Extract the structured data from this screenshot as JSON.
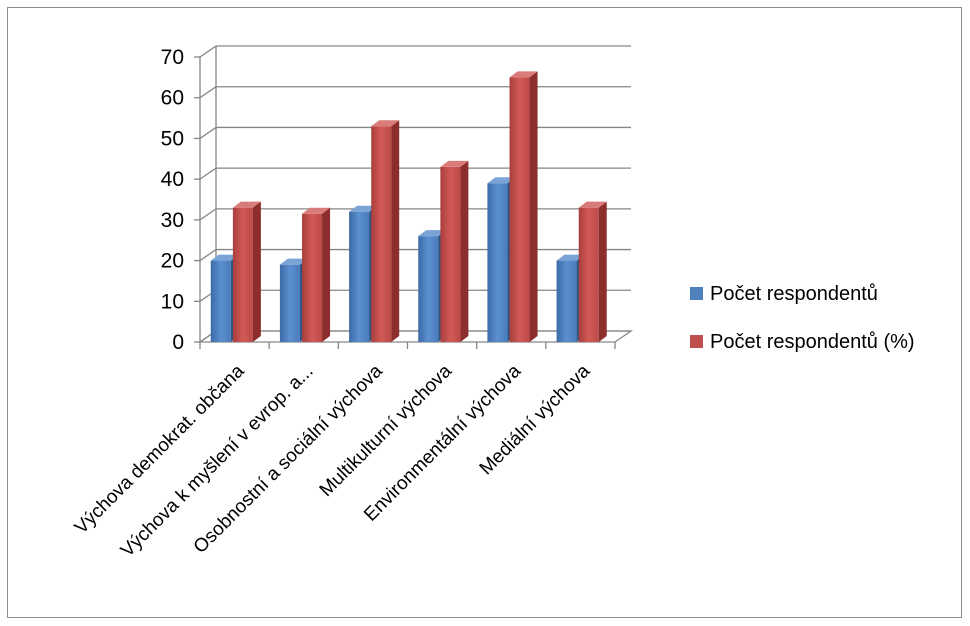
{
  "chart_data": {
    "type": "bar",
    "style": "3d-clustered-column",
    "categories": [
      "Výchova demokrat. občana",
      "Výchova k myšlení v evrop. a...",
      "Osobnostní a sociální výchova",
      "Multikulturní výchova",
      "Environmentální výchova",
      "Mediální výchova"
    ],
    "series": [
      {
        "name": "Počet respondentů",
        "color": "#4f81bd",
        "values": [
          20,
          19,
          32,
          26,
          39,
          20
        ]
      },
      {
        "name": "Počet respondentů (%)",
        "color": "#c0504d",
        "values": [
          33,
          31.5,
          53,
          43,
          65,
          33
        ]
      }
    ],
    "ylim": [
      0,
      70
    ],
    "yticks": [
      "0",
      "10",
      "20",
      "30",
      "40",
      "50",
      "60",
      "70"
    ],
    "grid": true,
    "legend_position": "right"
  }
}
